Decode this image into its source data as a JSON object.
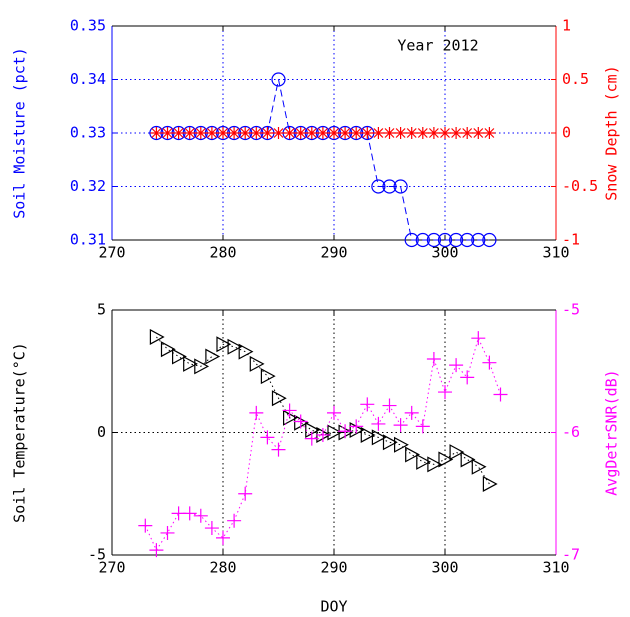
{
  "chart_data": [
    {
      "type": "line",
      "annotation": "Year 2012",
      "ylabel": "Soil Moisture (pct)",
      "y2label": "Snow Depth (cm)",
      "xlim": [
        270,
        310
      ],
      "xticks": [
        270,
        280,
        290,
        300,
        310
      ],
      "ylim": [
        0.31,
        0.35
      ],
      "yticks": [
        0.31,
        0.32,
        0.33,
        0.34,
        0.35
      ],
      "y2lim": [
        -1,
        1
      ],
      "y2ticks": [
        -1,
        -0.5,
        0,
        0.5,
        1
      ],
      "grid": true,
      "grid_color": "#0000ff",
      "series": [
        {
          "name": "Soil Moisture",
          "color": "#0000ff",
          "marker": "circle",
          "linestyle": "dashed",
          "x": [
            274,
            275,
            276,
            277,
            278,
            279,
            280,
            281,
            282,
            283,
            284,
            285,
            286,
            287,
            288,
            289,
            290,
            291,
            292,
            293,
            294,
            295,
            296,
            297,
            298,
            299,
            300,
            301,
            302,
            303,
            304
          ],
          "values": [
            0.33,
            0.33,
            0.33,
            0.33,
            0.33,
            0.33,
            0.33,
            0.33,
            0.33,
            0.33,
            0.33,
            0.34,
            0.33,
            0.33,
            0.33,
            0.33,
            0.33,
            0.33,
            0.33,
            0.33,
            0.32,
            0.32,
            0.32,
            0.31,
            0.31,
            0.31,
            0.31,
            0.31,
            0.31,
            0.31,
            0.31
          ]
        },
        {
          "name": "Snow Depth",
          "color": "#ff0000",
          "marker": "star",
          "linestyle": "solid",
          "axis": "y2",
          "x": [
            274,
            275,
            276,
            277,
            278,
            279,
            280,
            281,
            282,
            283,
            284,
            285,
            286,
            287,
            288,
            289,
            290,
            291,
            292,
            293,
            294,
            295,
            296,
            297,
            298,
            299,
            300,
            301,
            302,
            303,
            304
          ],
          "values": [
            0,
            0,
            0,
            0,
            0,
            0,
            0,
            0,
            0,
            0,
            0,
            0,
            0,
            0,
            0,
            0,
            0,
            0,
            0,
            0,
            0,
            0,
            0,
            0,
            0,
            0,
            0,
            0,
            0,
            0,
            0
          ]
        }
      ]
    },
    {
      "type": "line",
      "xlabel": "DOY",
      "ylabel": "Soil Temperature(°C)",
      "y2label": "AvgDetrSNR(dB)",
      "xlim": [
        270,
        310
      ],
      "xticks": [
        270,
        280,
        290,
        300,
        310
      ],
      "ylim": [
        -5,
        5
      ],
      "yticks": [
        -5,
        0,
        5
      ],
      "y2lim": [
        -7,
        -5
      ],
      "y2ticks": [
        -7,
        -6,
        -5
      ],
      "grid": true,
      "grid_color": "#000000",
      "series": [
        {
          "name": "Soil Temperature",
          "color": "#000000",
          "marker": "triangle-right",
          "linestyle": "dotted",
          "x": [
            274,
            275,
            276,
            277,
            278,
            279,
            280,
            281,
            282,
            283,
            284,
            285,
            286,
            287,
            288,
            289,
            290,
            291,
            292,
            293,
            294,
            295,
            296,
            297,
            298,
            299,
            300,
            301,
            302,
            303,
            304
          ],
          "values": [
            3.9,
            3.4,
            3.1,
            2.8,
            2.7,
            3.1,
            3.6,
            3.5,
            3.3,
            2.8,
            2.3,
            1.4,
            0.6,
            0.4,
            0.1,
            -0.1,
            0.0,
            0.0,
            0.1,
            -0.1,
            -0.2,
            -0.4,
            -0.5,
            -0.9,
            -1.2,
            -1.3,
            -1.1,
            -0.8,
            -1.1,
            -1.4,
            -2.1
          ]
        },
        {
          "name": "AvgDetrSNR",
          "color": "#ff00ff",
          "marker": "plus",
          "linestyle": "dotted",
          "axis": "y2",
          "x": [
            273,
            274,
            275,
            276,
            277,
            278,
            279,
            280,
            281,
            282,
            283,
            284,
            285,
            286,
            287,
            288,
            289,
            290,
            291,
            292,
            293,
            294,
            295,
            296,
            297,
            298,
            299,
            300,
            301,
            302,
            303,
            304,
            305
          ],
          "values": [
            -6.76,
            -6.96,
            -6.82,
            -6.66,
            -6.66,
            -6.68,
            -6.78,
            -6.86,
            -6.72,
            -6.5,
            -5.84,
            -6.04,
            -6.14,
            -5.82,
            -5.91,
            -6.05,
            -6.02,
            -5.84,
            -5.99,
            -5.95,
            -5.77,
            -5.93,
            -5.78,
            -5.94,
            -5.84,
            -5.95,
            -5.4,
            -5.67,
            -5.45,
            -5.55,
            -5.23,
            -5.43,
            -5.69
          ]
        }
      ]
    }
  ]
}
